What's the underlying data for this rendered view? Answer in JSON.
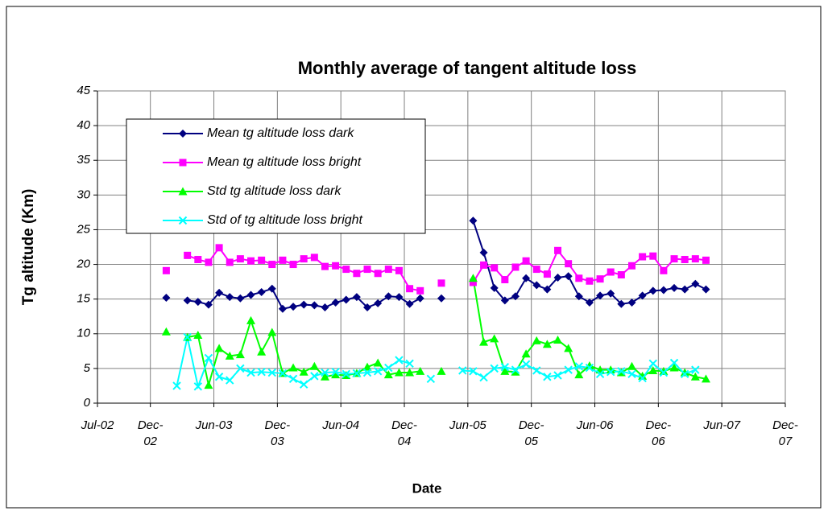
{
  "chart_data": {
    "type": "line",
    "title": "Monthly average of tangent altitude loss",
    "x_label": "Date",
    "y_label": "Tg altitude (Km)",
    "x": [
      "2003-01",
      "2003-02",
      "2003-03",
      "2003-04",
      "2003-05",
      "2003-06",
      "2003-07",
      "2003-08",
      "2003-09",
      "2003-10",
      "2003-11",
      "2003-12",
      "2004-01",
      "2004-02",
      "2004-03",
      "2004-04",
      "2004-05",
      "2004-06",
      "2004-07",
      "2004-08",
      "2004-09",
      "2004-10",
      "2004-11",
      "2004-12",
      "2005-01",
      "2005-02",
      "2005-03",
      "2005-04",
      "2005-05",
      "2005-06",
      "2005-07",
      "2005-08",
      "2005-09",
      "2005-10",
      "2005-11",
      "2005-12",
      "2006-01",
      "2006-02",
      "2006-03",
      "2006-04",
      "2006-05",
      "2006-06",
      "2006-07",
      "2006-08",
      "2006-09",
      "2006-10",
      "2006-11",
      "2006-12",
      "2007-01",
      "2007-02",
      "2007-03",
      "2007-04"
    ],
    "series": [
      {
        "name": "Mean tg altitude loss dark",
        "color": "#000080",
        "marker": "diamond",
        "values": [
          15.2,
          null,
          14.8,
          14.6,
          14.2,
          15.9,
          15.3,
          15.1,
          15.6,
          16.0,
          16.5,
          13.6,
          13.9,
          14.2,
          14.1,
          13.8,
          14.5,
          14.9,
          15.3,
          13.8,
          14.4,
          15.4,
          15.3,
          14.3,
          15.1,
          null,
          15.1,
          null,
          null,
          26.3,
          21.7,
          16.6,
          14.8,
          15.4,
          18.0,
          17.0,
          16.4,
          18.1,
          18.3,
          15.4,
          14.5,
          15.5,
          15.8,
          14.3,
          14.5,
          15.5,
          16.2,
          16.3,
          16.6,
          16.4,
          17.2,
          16.4
        ]
      },
      {
        "name": "Mean tg altitude loss bright",
        "color": "#ff00ff",
        "marker": "square",
        "values": [
          19.1,
          null,
          21.3,
          20.7,
          20.3,
          22.4,
          20.3,
          20.8,
          20.5,
          20.6,
          20.0,
          20.6,
          20.0,
          20.8,
          21.0,
          19.7,
          19.8,
          19.3,
          18.7,
          19.3,
          18.7,
          19.3,
          19.1,
          16.5,
          16.2,
          null,
          17.3,
          null,
          null,
          17.4,
          19.9,
          19.5,
          17.8,
          19.6,
          20.5,
          19.3,
          18.6,
          22.0,
          20.1,
          18.0,
          17.6,
          17.9,
          18.9,
          18.5,
          19.8,
          21.1,
          21.2,
          19.1,
          20.8,
          20.7,
          20.8,
          20.6
        ]
      },
      {
        "name": "Std tg altitude loss dark",
        "color": "#00ff00",
        "marker": "triangle",
        "values": [
          10.3,
          null,
          9.5,
          9.8,
          2.6,
          7.9,
          6.8,
          7.0,
          11.9,
          7.4,
          10.2,
          4.3,
          5.1,
          4.5,
          5.3,
          3.8,
          4.1,
          4.0,
          4.3,
          5.2,
          5.8,
          4.1,
          4.4,
          4.4,
          4.6,
          null,
          4.6,
          null,
          null,
          18.0,
          8.8,
          9.3,
          4.6,
          4.5,
          7.1,
          9.0,
          8.5,
          9.1,
          7.9,
          4.1,
          5.4,
          4.8,
          4.8,
          4.4,
          5.3,
          3.9,
          4.7,
          4.6,
          5.1,
          4.4,
          3.8,
          3.5
        ]
      },
      {
        "name": "Std of tg altitude loss bright",
        "color": "#00ffff",
        "marker": "x",
        "values": [
          null,
          2.5,
          9.5,
          2.4,
          6.5,
          3.8,
          3.3,
          5.0,
          4.4,
          4.5,
          4.4,
          4.3,
          3.5,
          2.7,
          3.9,
          4.4,
          4.5,
          4.2,
          4.3,
          4.4,
          4.6,
          5.1,
          6.2,
          5.7,
          null,
          3.5,
          null,
          null,
          4.7,
          4.6,
          3.7,
          5.0,
          5.2,
          4.8,
          5.6,
          4.7,
          3.8,
          4.0,
          4.8,
          5.3,
          5.1,
          4.2,
          4.5,
          4.6,
          4.2,
          3.6,
          5.7,
          4.4,
          5.8,
          4.2,
          4.8,
          null
        ]
      }
    ],
    "xlim": [
      "2002-07",
      "2007-12"
    ],
    "xticks": [
      {
        "value": "2002-07",
        "label": "Jul-02"
      },
      {
        "value": "2002-12",
        "label": "Dec-02"
      },
      {
        "value": "2003-06",
        "label": "Jun-03"
      },
      {
        "value": "2003-12",
        "label": "Dec-03"
      },
      {
        "value": "2004-06",
        "label": "Jun-04"
      },
      {
        "value": "2004-12",
        "label": "Dec-04"
      },
      {
        "value": "2005-06",
        "label": "Jun-05"
      },
      {
        "value": "2005-12",
        "label": "Dec-05"
      },
      {
        "value": "2006-06",
        "label": "Jun-06"
      },
      {
        "value": "2006-12",
        "label": "Dec-06"
      },
      {
        "value": "2007-06",
        "label": "Jun-07"
      },
      {
        "value": "2007-12",
        "label": "Dec-07"
      }
    ],
    "ylim": [
      0,
      45
    ],
    "yticks": [
      0,
      5,
      10,
      15,
      20,
      25,
      30,
      35,
      40,
      45
    ],
    "grid": true,
    "legend": "upper left"
  }
}
